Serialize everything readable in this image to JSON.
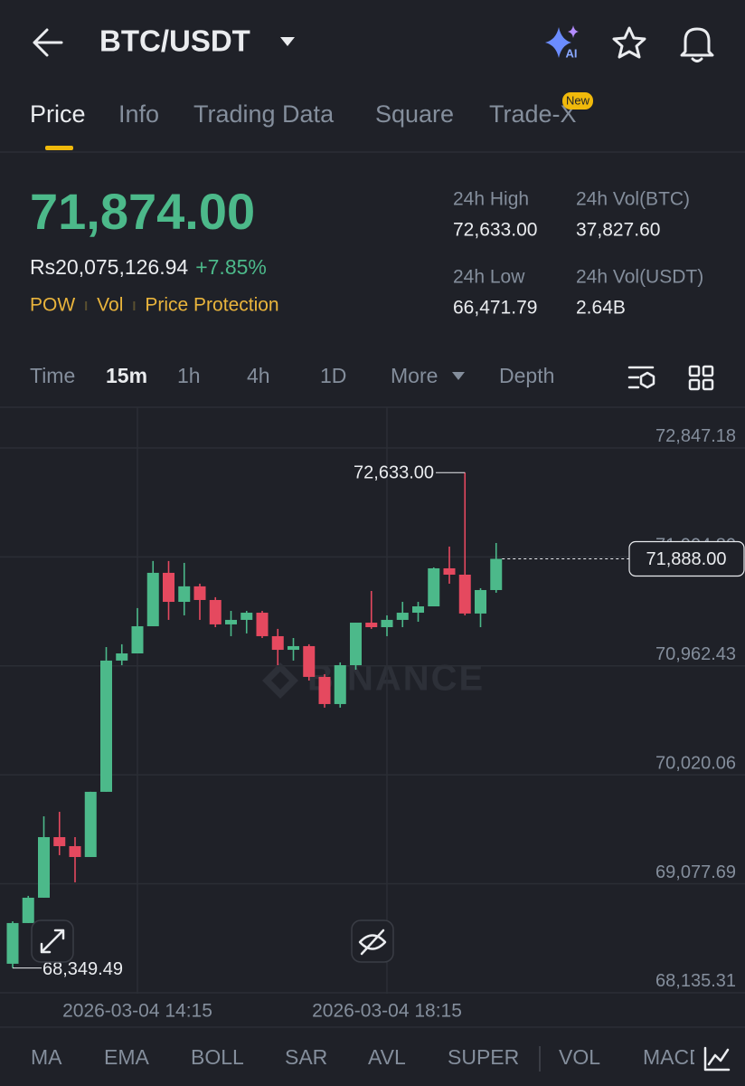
{
  "header": {
    "pair": "BTC/USDT",
    "ai_badge": "AI"
  },
  "tabs": [
    {
      "label": "Price",
      "active": true
    },
    {
      "label": "Info",
      "active": false
    },
    {
      "label": "Trading Data",
      "active": false
    },
    {
      "label": "Square",
      "active": false
    },
    {
      "label": "Trade-X",
      "active": false,
      "badge": "New"
    }
  ],
  "ticker": {
    "last_price": "71,874.00",
    "local_price": "Rs20,075,126.94",
    "change": "+7.85%",
    "tags": [
      "POW",
      "Vol",
      "Price Protection"
    ],
    "stats": [
      {
        "label": "24h High",
        "value": "72,633.00"
      },
      {
        "label": "24h Vol(BTC)",
        "value": "37,827.60"
      },
      {
        "label": "24h Low",
        "value": "66,471.79"
      },
      {
        "label": "24h Vol(USDT)",
        "value": "2.64B"
      }
    ]
  },
  "intervals": [
    {
      "label": "Time",
      "active": false
    },
    {
      "label": "15m",
      "active": true
    },
    {
      "label": "1h",
      "active": false
    },
    {
      "label": "4h",
      "active": false
    },
    {
      "label": "1D",
      "active": false
    },
    {
      "label": "More",
      "active": false
    },
    {
      "label": "Depth",
      "active": false
    }
  ],
  "chart_data": {
    "type": "candlestick",
    "categories": [
      null,
      null,
      null,
      null,
      null,
      null,
      null,
      null,
      "2026-03-04 14:15",
      null,
      null,
      null,
      null,
      null,
      null,
      null,
      null,
      null,
      null,
      null,
      null,
      null,
      null,
      null,
      "2026-03-04 18:15",
      null,
      null,
      null,
      null,
      null,
      null,
      null
    ],
    "open": [
      68386,
      68738,
      68957,
      69481,
      69403,
      69309,
      69873,
      71008,
      71070,
      71305,
      71767,
      71516,
      71650,
      71532,
      71321,
      71360,
      71422,
      71219,
      71101,
      71133,
      70867,
      70632,
      70968,
      71336,
      71297,
      71360,
      71422,
      71477,
      71806,
      71751,
      71415,
      71618
    ],
    "high": [
      68753,
      68973,
      69661,
      69700,
      69481,
      69873,
      71125,
      71149,
      71462,
      71869,
      71869,
      71853,
      71673,
      71556,
      71438,
      71438,
      71438,
      71282,
      71203,
      71149,
      70890,
      70992,
      71336,
      71610,
      71399,
      71516,
      71516,
      71814,
      71994,
      72633,
      71634,
      72025
    ],
    "low": [
      68349.49,
      68738,
      68957,
      69325,
      69090,
      69309,
      69873,
      70968,
      71070,
      71305,
      71360,
      71399,
      71360,
      71297,
      71219,
      71243,
      71203,
      70968,
      71008,
      70835,
      70601,
      70601,
      70929,
      71282,
      71219,
      71297,
      71344,
      71477,
      71673,
      71399,
      71297,
      71595
    ],
    "close": [
      68738,
      68957,
      69481,
      69403,
      69309,
      69873,
      71008,
      71070,
      71305,
      71767,
      71516,
      71650,
      71532,
      71321,
      71360,
      71422,
      71219,
      71101,
      71133,
      70867,
      70632,
      70968,
      71336,
      71297,
      71360,
      71422,
      71477,
      71806,
      71751,
      71415,
      71618,
      71888
    ],
    "up_color": "#4cb98a",
    "down_color": "#e5495f",
    "ylim": [
      68127,
      73199
    ],
    "yticks": [
      {
        "value": 72847.18,
        "label": "72,847.18"
      },
      {
        "value": 71904.8,
        "label": "71,904.80"
      },
      {
        "value": 70962.43,
        "label": "70,962.43"
      },
      {
        "value": 70020.06,
        "label": "70,020.06"
      },
      {
        "value": 69077.69,
        "label": "69,077.69"
      },
      {
        "value": 68135.31,
        "label": "68,135.31"
      }
    ],
    "grid": true,
    "high_marker": {
      "value": 72633,
      "label": "72,633.00"
    },
    "low_marker": {
      "value": 68349.49,
      "label": "68,349.49"
    },
    "last_price": {
      "value": 71888,
      "label": "71,888.00"
    },
    "watermark": "BINANCE"
  },
  "indicators": [
    "MA",
    "EMA",
    "BOLL",
    "SAR",
    "AVL",
    "SUPER",
    "VOL",
    "MACD"
  ]
}
